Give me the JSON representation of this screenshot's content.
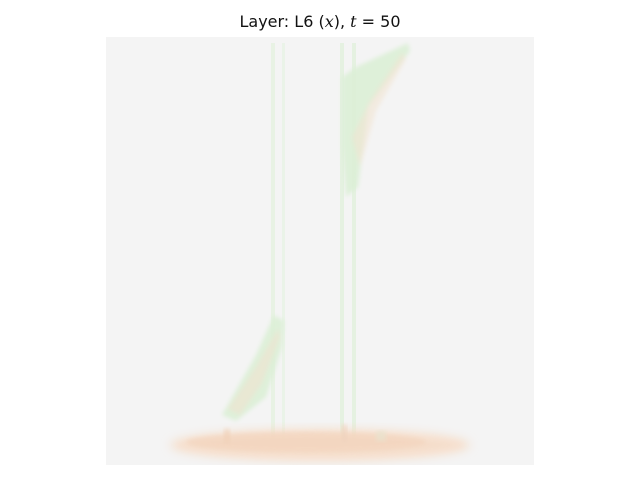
{
  "title": {
    "prefix": "Layer: L6 (",
    "var": "x",
    "middle": "), ",
    "tvar": "t",
    "suffix": " = 50"
  },
  "image": {
    "background_color": "#f4f4f4",
    "green_tint": "#dff0da",
    "orange_tint": "#f6dcc8"
  }
}
